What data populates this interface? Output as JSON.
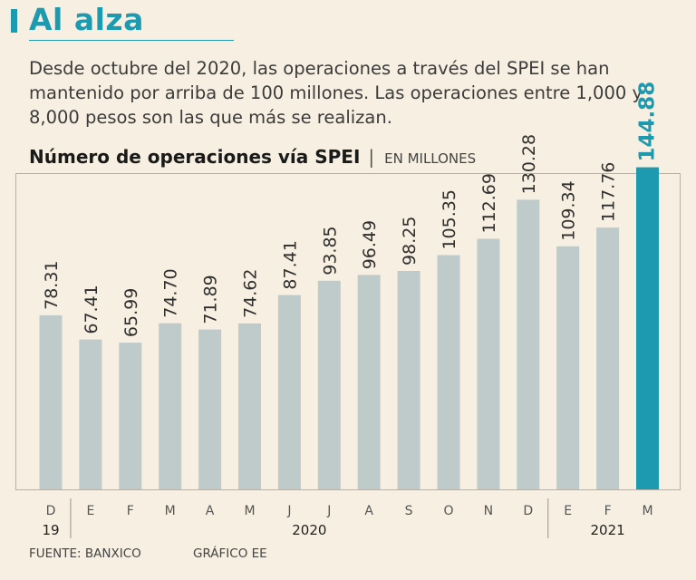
{
  "header": {
    "title": "Al alza",
    "description": "Desde octubre del 2020, las operaciones a través del SPEI se han mantenido por arriba de 100 millones. Las operaciones entre 1,000 y 8,000 pesos son las que más se realizan."
  },
  "chart_title": {
    "main": "Número de operaciones vía SPEI",
    "separator": "|",
    "units": "EN MILLONES"
  },
  "footer": {
    "source": "FUENTE: BANXICO",
    "credit": "GRÁFICO EE"
  },
  "colors": {
    "accent": "#1e9ab0",
    "bar": "#bfcbca",
    "highlight": "#1e9ab0",
    "background": "#f7efe1"
  },
  "chart_data": {
    "type": "bar",
    "title": "Número de operaciones vía SPEI",
    "ylabel": "EN MILLONES",
    "xlabel": "",
    "ylim": [
      0,
      150
    ],
    "categories": [
      "D",
      "E",
      "F",
      "M",
      "A",
      "M",
      "J",
      "J",
      "A",
      "S",
      "O",
      "N",
      "D",
      "E",
      "F",
      "M"
    ],
    "values": [
      78.31,
      67.41,
      65.99,
      74.7,
      71.89,
      74.62,
      87.41,
      93.85,
      96.49,
      98.25,
      105.35,
      112.69,
      130.28,
      109.34,
      117.76,
      144.88
    ],
    "value_labels": [
      "78.31",
      "67.41",
      "65.99",
      "74.70",
      "71.89",
      "74.62",
      "87.41",
      "93.85",
      "96.49",
      "98.25",
      "105.35",
      "112.69",
      "130.28",
      "109.34",
      "117.76",
      "144.88"
    ],
    "highlight_index": 15,
    "year_groups": [
      {
        "label": "19",
        "start": 0,
        "end": 0
      },
      {
        "label": "2020",
        "start": 1,
        "end": 12
      },
      {
        "label": "2021",
        "start": 13,
        "end": 15
      }
    ]
  }
}
